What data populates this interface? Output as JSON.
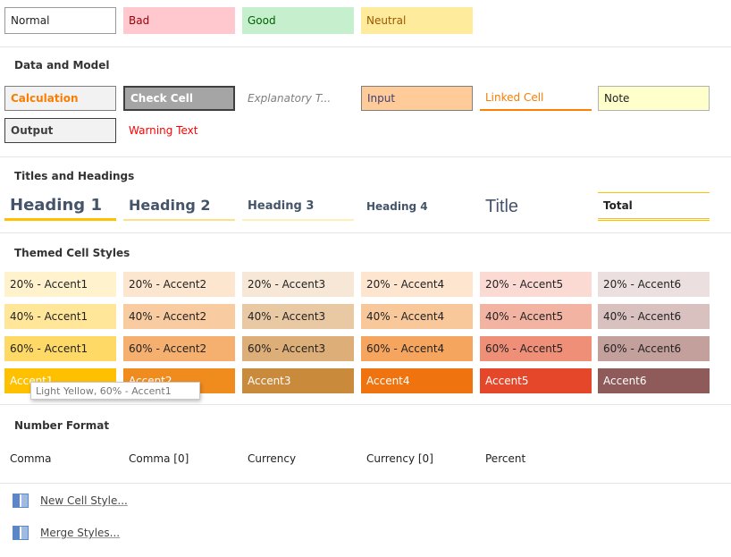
{
  "styles": {
    "top": [
      "Normal",
      "Bad",
      "Good",
      "Neutral"
    ]
  },
  "data_and_model": {
    "title": "Data and Model",
    "items": [
      "Calculation",
      "Check Cell",
      "Explanatory T...",
      "Input",
      "Linked Cell",
      "Note",
      "Output",
      "Warning Text"
    ]
  },
  "titles_and_headings": {
    "title": "Titles and Headings",
    "items": [
      "Heading 1",
      "Heading 2",
      "Heading 3",
      "Heading 4",
      "Title",
      "Total"
    ]
  },
  "themed_cell_styles": {
    "title": "Themed Cell Styles",
    "rows": [
      [
        "20% - Accent1",
        "20% - Accent2",
        "20% - Accent3",
        "20% - Accent4",
        "20% - Accent5",
        "20% - Accent6"
      ],
      [
        "40% - Accent1",
        "40% - Accent2",
        "40% - Accent3",
        "40% - Accent4",
        "40% - Accent5",
        "40% - Accent6"
      ],
      [
        "60% - Accent1",
        "60% - Accent2",
        "60% - Accent3",
        "60% - Accent4",
        "60% - Accent5",
        "60% - Accent6"
      ],
      [
        "Accent1",
        "Accent2",
        "Accent3",
        "Accent4",
        "Accent5",
        "Accent6"
      ]
    ]
  },
  "tooltip": "Light Yellow, 60% - Accent1",
  "number_format": {
    "title": "Number Format",
    "items": [
      "Comma",
      "Comma [0]",
      "Currency",
      "Currency [0]",
      "Percent"
    ]
  },
  "menu": [
    "New Cell Style...",
    "Merge Styles..."
  ]
}
